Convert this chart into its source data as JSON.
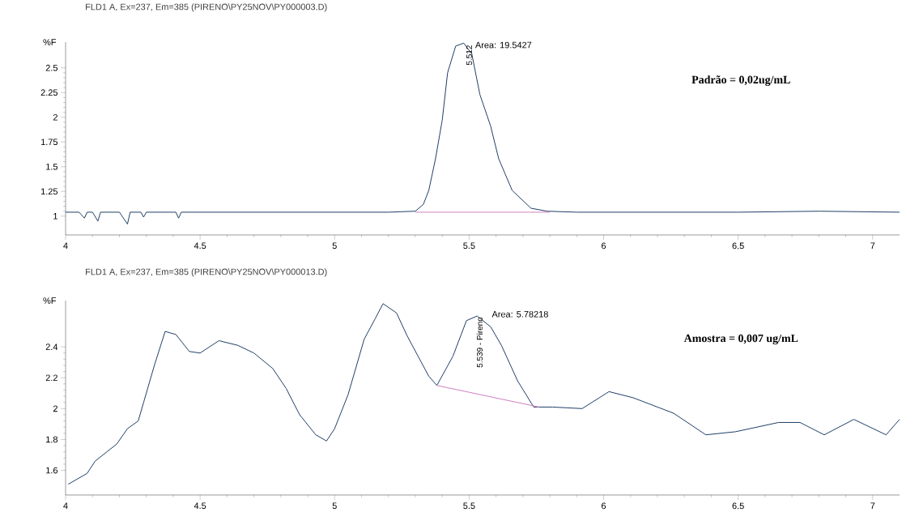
{
  "chart_data": [
    {
      "type": "line",
      "title": "FLD1 A, Ex=237, Em=385 (PIRENO\\PY25NOV\\PY000003.D)",
      "ylabel": "%F",
      "series": [
        {
          "color": "#1f3f66",
          "x": [
            4.0,
            4.05,
            4.07,
            4.08,
            4.1,
            4.12,
            4.13,
            4.2,
            4.23,
            4.24,
            4.28,
            4.29,
            4.3,
            4.41,
            4.42,
            4.43,
            4.8,
            5.2,
            5.3,
            5.33,
            5.35,
            5.375,
            5.4,
            5.42,
            5.45,
            5.48,
            5.51,
            5.54,
            5.58,
            5.61,
            5.66,
            5.73,
            5.79,
            5.9,
            6.2,
            6.5,
            6.8,
            7.1
          ],
          "values": [
            1.04,
            1.04,
            0.98,
            1.04,
            1.04,
            0.95,
            1.04,
            1.04,
            0.92,
            1.04,
            1.04,
            0.99,
            1.04,
            1.04,
            0.98,
            1.04,
            1.04,
            1.04,
            1.05,
            1.12,
            1.26,
            1.58,
            1.97,
            2.45,
            2.72,
            2.75,
            2.64,
            2.23,
            1.91,
            1.58,
            1.26,
            1.08,
            1.05,
            1.04,
            1.04,
            1.04,
            1.05,
            1.04
          ]
        },
        {
          "color": "#d080c0",
          "x": [
            5.3,
            5.8
          ],
          "values": [
            1.04,
            1.04
          ]
        }
      ],
      "xlim": [
        4,
        7.1
      ],
      "xticks": [
        4,
        4.5,
        5,
        5.5,
        6,
        6.5,
        7
      ],
      "ylim": [
        0.81,
        2.76
      ],
      "yticks": [
        1,
        1.25,
        1.5,
        1.75,
        2,
        2.25,
        2.5
      ],
      "annotations": [
        {
          "text": "5.512",
          "x": 5.5,
          "y": 2.74
        },
        "Area: 19.5427",
        "Padrão = 0,02ug/mL"
      ]
    },
    {
      "type": "line",
      "title": "FLD1 A, Ex=237, Em=385 (PIRENO\\PY25NOV\\PY000013.D)",
      "ylabel": "%F",
      "series": [
        {
          "color": "#1f3f66",
          "x": [
            4.01,
            4.08,
            4.11,
            4.19,
            4.23,
            4.27,
            4.29,
            4.33,
            4.37,
            4.41,
            4.46,
            4.5,
            4.57,
            4.64,
            4.7,
            4.77,
            4.82,
            4.87,
            4.93,
            4.97,
            5.0,
            5.05,
            5.11,
            5.15,
            5.18,
            5.23,
            5.27,
            5.31,
            5.35,
            5.38,
            5.44,
            5.49,
            5.53,
            5.58,
            5.62,
            5.68,
            5.74,
            5.81,
            5.92,
            6.02,
            6.11,
            6.26,
            6.38,
            6.49,
            6.65,
            6.73,
            6.82,
            6.93,
            7.05,
            7.1
          ],
          "values": [
            1.51,
            1.58,
            1.66,
            1.77,
            1.87,
            1.92,
            2.04,
            2.28,
            2.5,
            2.48,
            2.37,
            2.36,
            2.44,
            2.41,
            2.36,
            2.26,
            2.13,
            1.96,
            1.83,
            1.79,
            1.87,
            2.09,
            2.45,
            2.58,
            2.68,
            2.62,
            2.47,
            2.34,
            2.21,
            2.15,
            2.34,
            2.57,
            2.6,
            2.53,
            2.41,
            2.18,
            2.01,
            2.01,
            2.0,
            2.11,
            2.07,
            1.97,
            1.83,
            1.85,
            1.91,
            1.91,
            1.83,
            1.93,
            1.83,
            1.93
          ]
        },
        {
          "color": "#d080c0",
          "x": [
            5.38,
            5.76
          ],
          "values": [
            2.15,
            2.01
          ]
        }
      ],
      "xlim": [
        4,
        7.1
      ],
      "xticks": [
        4,
        4.5,
        5,
        5.5,
        6,
        6.5,
        7
      ],
      "ylim": [
        1.44,
        2.7
      ],
      "yticks": [
        1.6,
        1.8,
        2,
        2.2,
        2.4
      ],
      "annotations": [
        {
          "text": "5.539 - Pireno",
          "x": 5.539,
          "y": 2.6
        },
        "Area: 5.78218",
        "Amostra = 0,007 ug/mL"
      ]
    }
  ]
}
